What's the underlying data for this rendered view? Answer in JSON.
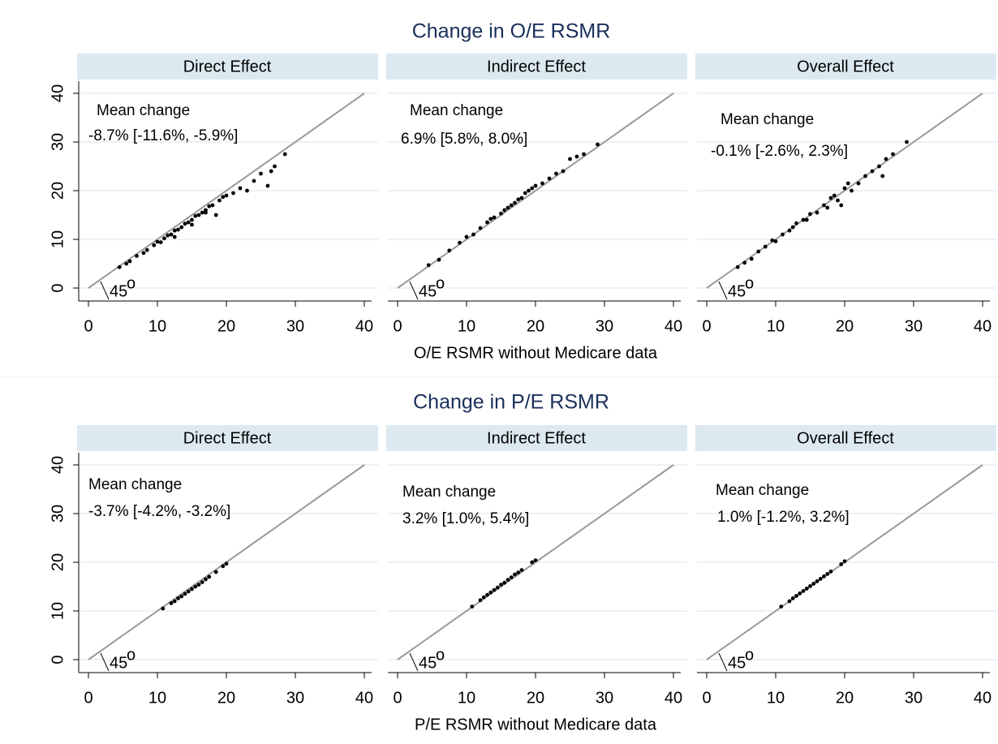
{
  "chart_data": [
    {
      "type": "scatter",
      "title": "Change in O/E RSMR",
      "panel_title": "Direct Effect",
      "annotation": [
        "Mean change",
        "-8.7% [-11.6%, -5.9%]"
      ],
      "diagonal_label": "45",
      "diagonal_label_sup": "o",
      "color": "#000000",
      "line_color": "#999999",
      "grid": true,
      "xlim": [
        0,
        40
      ],
      "ylim": [
        0,
        40
      ],
      "xticks": [
        0,
        10,
        20,
        30,
        40
      ],
      "yticks": [
        0,
        10,
        20,
        30,
        40
      ],
      "x": [
        4.5,
        5.5,
        6,
        7,
        8,
        8.5,
        9.5,
        10,
        10.5,
        11,
        11.5,
        12,
        12.5,
        13,
        13.5,
        14,
        14.5,
        15,
        15.5,
        16,
        16.5,
        17,
        17.5,
        18,
        18.5,
        19,
        19.5,
        20,
        21,
        22,
        23,
        24,
        25,
        26,
        26.5,
        27,
        28.5,
        12.5,
        15,
        17
      ],
      "y": [
        4.3,
        5,
        5.5,
        6.6,
        7.2,
        7.8,
        8.8,
        9.5,
        9.4,
        10.2,
        10.8,
        11,
        11.8,
        12,
        12.5,
        13.2,
        13.5,
        14,
        14.8,
        15,
        15.5,
        16,
        16.8,
        17,
        15,
        18,
        18.7,
        19,
        19.5,
        20.5,
        20,
        22,
        23.5,
        21,
        24,
        25,
        27.5,
        10.5,
        13,
        15.5
      ]
    },
    {
      "type": "scatter",
      "panel_title": "Indirect Effect",
      "xlabel": "O/E RSMR without Medicare data",
      "annotation": [
        "Mean change",
        "6.9% [5.8%, 8.0%]"
      ],
      "diagonal_label": "45",
      "diagonal_label_sup": "o",
      "color": "#000000",
      "line_color": "#999999",
      "grid": true,
      "xlim": [
        0,
        40
      ],
      "ylim": [
        0,
        40
      ],
      "xticks": [
        0,
        10,
        20,
        30,
        40
      ],
      "yticks": [
        0,
        10,
        20,
        30,
        40
      ],
      "x": [
        4.5,
        6,
        7.5,
        9,
        10,
        11,
        12,
        13,
        13.5,
        14,
        15,
        15.5,
        16,
        16.5,
        17,
        17.5,
        18,
        18.5,
        19,
        19.5,
        20,
        21,
        22,
        23,
        24,
        25,
        26,
        27,
        29
      ],
      "y": [
        4.7,
        5.8,
        7.7,
        9.3,
        10.5,
        11,
        12.3,
        13.5,
        14.2,
        14.5,
        15.3,
        16,
        16.5,
        17,
        17.5,
        18.2,
        18.5,
        19.5,
        20,
        20.5,
        21,
        21.5,
        22.5,
        23.5,
        24,
        26.5,
        27,
        27.5,
        29.5
      ]
    },
    {
      "type": "scatter",
      "panel_title": "Overall Effect",
      "annotation": [
        "Mean change",
        "-0.1% [-2.6%, 2.3%]"
      ],
      "diagonal_label": "45",
      "diagonal_label_sup": "o",
      "color": "#000000",
      "line_color": "#999999",
      "grid": true,
      "xlim": [
        0,
        40
      ],
      "ylim": [
        0,
        40
      ],
      "xticks": [
        0,
        10,
        20,
        30,
        40
      ],
      "yticks": [
        0,
        10,
        20,
        30,
        40
      ],
      "x": [
        4.5,
        5.5,
        6.5,
        7.5,
        8.5,
        9.5,
        10,
        11,
        12,
        12.5,
        13,
        14,
        14.5,
        15,
        16,
        17,
        17.5,
        18,
        18.5,
        19,
        19.5,
        20,
        20.5,
        21,
        22,
        23,
        24,
        25,
        25.5,
        26,
        29,
        27
      ],
      "y": [
        4.3,
        5.2,
        6,
        7.5,
        8.5,
        9.8,
        9.6,
        11,
        11.8,
        12.5,
        13.3,
        14,
        14,
        15.2,
        15.5,
        17,
        16.5,
        18.5,
        19,
        18,
        17,
        20.5,
        21.5,
        20,
        21.5,
        23,
        24,
        25,
        23,
        26.5,
        30,
        27.5
      ]
    },
    {
      "type": "scatter",
      "title": "Change in P/E RSMR",
      "panel_title": "Direct Effect",
      "annotation": [
        "Mean change",
        "-3.7% [-4.2%, -3.2%]"
      ],
      "diagonal_label": "45",
      "diagonal_label_sup": "o",
      "color": "#000000",
      "line_color": "#999999",
      "grid": true,
      "xlim": [
        0,
        40
      ],
      "ylim": [
        0,
        40
      ],
      "xticks": [
        0,
        10,
        20,
        30,
        40
      ],
      "yticks": [
        0,
        10,
        20,
        30,
        40
      ],
      "x": [
        10.8,
        12,
        12.5,
        13,
        13.5,
        14,
        14.5,
        15,
        15.5,
        16,
        16.5,
        17,
        17.5,
        18.5,
        19.5,
        20
      ],
      "y": [
        10.5,
        11.6,
        12,
        12.6,
        13,
        13.5,
        14,
        14.5,
        15,
        15.4,
        15.9,
        16.5,
        17,
        18,
        19.2,
        19.7
      ]
    },
    {
      "type": "scatter",
      "panel_title": "Indirect Effect",
      "xlabel": "P/E RSMR without Medicare data",
      "annotation": [
        "Mean change",
        "3.2% [1.0%, 5.4%]"
      ],
      "diagonal_label": "45",
      "diagonal_label_sup": "o",
      "color": "#000000",
      "line_color": "#999999",
      "grid": true,
      "xlim": [
        0,
        40
      ],
      "ylim": [
        0,
        40
      ],
      "xticks": [
        0,
        10,
        20,
        30,
        40
      ],
      "yticks": [
        0,
        10,
        20,
        30,
        40
      ],
      "x": [
        10.8,
        12,
        12.5,
        13,
        13.5,
        14,
        14.5,
        15,
        15.5,
        16,
        16.5,
        17,
        17.5,
        18,
        19.5,
        20
      ],
      "y": [
        10.9,
        12.2,
        12.8,
        13.3,
        13.8,
        14.3,
        14.8,
        15.4,
        15.8,
        16.4,
        16.9,
        17.5,
        17.9,
        18.4,
        20,
        20.4
      ]
    },
    {
      "type": "scatter",
      "panel_title": "Overall Effect",
      "annotation": [
        "Mean change",
        "1.0% [-1.2%, 3.2%]"
      ],
      "diagonal_label": "45",
      "diagonal_label_sup": "o",
      "color": "#000000",
      "line_color": "#999999",
      "grid": true,
      "xlim": [
        0,
        40
      ],
      "ylim": [
        0,
        40
      ],
      "xticks": [
        0,
        10,
        20,
        30,
        40
      ],
      "yticks": [
        0,
        10,
        20,
        30,
        40
      ],
      "x": [
        10.8,
        12,
        12.5,
        13,
        13.5,
        14,
        14.5,
        15,
        15.5,
        16,
        16.5,
        17,
        17.5,
        18,
        19.5,
        20
      ],
      "y": [
        10.9,
        12,
        12.6,
        13.1,
        13.6,
        14.1,
        14.6,
        15.1,
        15.6,
        16.1,
        16.6,
        17.1,
        17.6,
        18.1,
        19.6,
        20.2
      ]
    }
  ]
}
